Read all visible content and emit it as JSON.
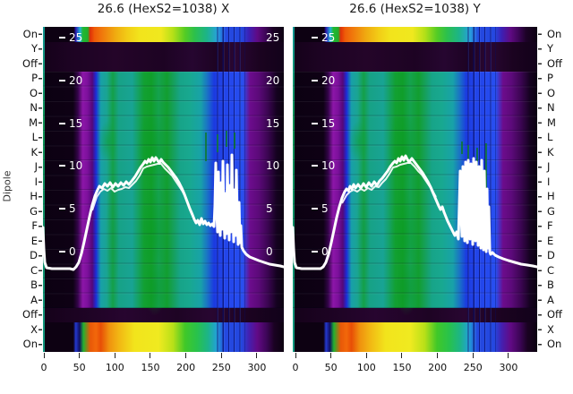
{
  "titles": {
    "left": "26.6 (HexS2=1038) X",
    "right": "26.6 (HexS2=1038) Y"
  },
  "y_axis": {
    "label": "Dipole",
    "categories": [
      "On",
      "Y",
      "Off",
      "P",
      "O",
      "N",
      "M",
      "L",
      "K",
      "J",
      "I",
      "H",
      "G",
      "F",
      "E",
      "D",
      "C",
      "B",
      "A",
      "Off",
      "X",
      "On"
    ]
  },
  "overlay_axis": {
    "tick_values": [
      "25",
      "20",
      "15",
      "10",
      "5",
      "0"
    ]
  },
  "x_axis": {
    "ticks": [
      "0",
      "50",
      "100",
      "150",
      "200",
      "250",
      "300"
    ]
  },
  "colors": {
    "background": "#ffffff",
    "panel_dark": "#0a0110",
    "teal_block": "#18a390",
    "green_patch": "#109e2c",
    "purple_column": "#7c109c",
    "blue_column": "#2448e8",
    "rainbow_hot": "#f2e41c",
    "line": "#ffffff",
    "text": "#111111"
  },
  "chart_data": [
    {
      "type": "heatmap",
      "title": "26.6 (HexS2=1038) X",
      "xlabel_ticks": [
        0,
        50,
        100,
        150,
        200,
        250,
        300
      ],
      "x_range": [
        0,
        338
      ],
      "rows": [
        "On",
        "Y",
        "Off",
        "P",
        "O",
        "N",
        "M",
        "L",
        "K",
        "J",
        "I",
        "H",
        "G",
        "F",
        "E",
        "D",
        "C",
        "B",
        "A",
        "Off",
        "X",
        "On"
      ],
      "row_bands": {
        "On_top": "rainbow strip: dark | blue | green | red-orange | yellow | green | teal | blue | purple | dark",
        "Y_Off": "very dark purple",
        "P_to_A": "teal/green block with purple column (~50-70), blue columns (~240-280), noisy blue stripes (~245-270), purple fade (~285-320)",
        "Off_lower": "very dark purple",
        "X_On_bottom": "rainbow strip: dark | blue | orange | yellow | green | teal | blue | purple | dark"
      },
      "overlay_line": {
        "scale": [
          0,
          25
        ],
        "points": [
          [
            0,
            3.0
          ],
          [
            10,
            -1.8
          ],
          [
            43,
            -1.9
          ],
          [
            69,
            5.5
          ],
          [
            79,
            7.8
          ],
          [
            126,
            8.6
          ],
          [
            151,
            11.0
          ],
          [
            168,
            10.7
          ],
          [
            190,
            8.4
          ],
          [
            205,
            5.3
          ],
          [
            216,
            3.6
          ],
          [
            241,
            3.2
          ],
          [
            255,
            9.8
          ],
          [
            266,
            11.6
          ],
          [
            275,
            1.5
          ],
          [
            291,
            -0.4
          ],
          [
            319,
            -1.3
          ],
          [
            339,
            -1.6
          ]
        ],
        "noisy_region_x": [
          240,
          280
        ]
      }
    },
    {
      "type": "heatmap",
      "title": "26.6 (HexS2=1038) Y",
      "xlabel_ticks": [
        0,
        50,
        100,
        150,
        200,
        250,
        300
      ],
      "x_range": [
        0,
        338
      ],
      "rows": [
        "On",
        "Y",
        "Off",
        "P",
        "O",
        "N",
        "M",
        "L",
        "K",
        "J",
        "I",
        "H",
        "G",
        "F",
        "E",
        "D",
        "C",
        "B",
        "A",
        "Off",
        "X",
        "On"
      ],
      "row_bands": {
        "On_top": "rainbow strip: dark | blue | green | red-orange | yellow | green | teal | blue | purple | dark",
        "Y_Off": "very dark purple",
        "P_to_A": "teal/green block with purple column (~45-62), blue columns (~235-275), dense noisy blue stripes (~245-275), purple fade (~280-330)",
        "Off_lower": "very dark purple",
        "X_On_bottom": "rainbow strip: dark | blue | orange | yellow | green | teal | blue | purple | dark"
      },
      "overlay_line": {
        "scale": [
          0,
          25
        ],
        "points": [
          [
            0,
            3.0
          ],
          [
            12,
            -1.8
          ],
          [
            40,
            -1.9
          ],
          [
            70,
            6.2
          ],
          [
            80,
            7.6
          ],
          [
            126,
            8.8
          ],
          [
            148,
            10.9
          ],
          [
            165,
            10.6
          ],
          [
            188,
            8.0
          ],
          [
            205,
            4.8
          ],
          [
            220,
            2.5
          ],
          [
            232,
            1.6
          ],
          [
            245,
            10.5
          ],
          [
            258,
            11.2
          ],
          [
            268,
            10.0
          ],
          [
            280,
            0.2
          ],
          [
            300,
            -0.8
          ],
          [
            322,
            -1.4
          ],
          [
            343,
            -1.6
          ]
        ],
        "noisy_region_x": [
          234,
          278
        ]
      }
    }
  ]
}
